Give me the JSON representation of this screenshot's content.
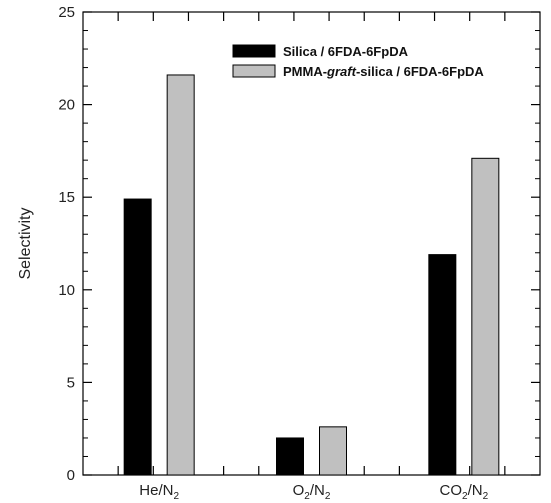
{
  "chart_data": {
    "type": "bar",
    "title": "",
    "xlabel": "",
    "ylabel": "Selectivity",
    "ylim": [
      0,
      25
    ],
    "y_ticks": [
      0,
      5,
      10,
      15,
      20,
      25
    ],
    "y_tick_labels": [
      "0",
      "5",
      "10",
      "15",
      "20",
      "25"
    ],
    "categories": [
      {
        "main": "He/N",
        "sub": "2",
        "text": "He/N2"
      },
      {
        "main": "O",
        "sub": "2",
        "main2": "/N",
        "sub2": "2",
        "text": "O2/N2"
      },
      {
        "main": "CO",
        "sub": "2",
        "main2": "/N",
        "sub2": "2",
        "text": "CO2/N2"
      }
    ],
    "series": [
      {
        "name": "Silica / 6FDA-6FpDA",
        "color": "#000000",
        "values": [
          14.9,
          2.0,
          11.9
        ]
      },
      {
        "name": "PMMA-graft-silica / 6FDA-6FpDA",
        "name_parts": [
          "PMMA-",
          "graft",
          "-silica / 6FDA-6FpDA"
        ],
        "color": "#c0c0c0",
        "values": [
          21.6,
          2.6,
          17.1
        ]
      }
    ],
    "grid": false,
    "legend_position": "top-right"
  }
}
